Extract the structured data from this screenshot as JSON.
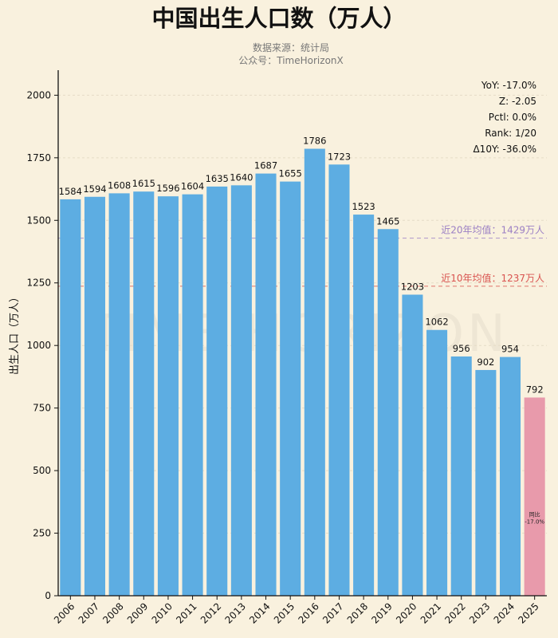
{
  "chart_data": {
    "type": "bar",
    "title": "中国出生人口数（万人）",
    "subtitle_lines": [
      "数据来源：统计局",
      "公众号：TimeHorizonX"
    ],
    "ylabel": "出生人口（万人）",
    "xlabel": "",
    "ylim": [
      0,
      2100
    ],
    "yticks": [
      0,
      250,
      500,
      750,
      1000,
      1250,
      1500,
      1750,
      2000
    ],
    "grid": true,
    "categories": [
      "2006",
      "2007",
      "2008",
      "2009",
      "2010",
      "2011",
      "2012",
      "2013",
      "2014",
      "2015",
      "2016",
      "2017",
      "2018",
      "2019",
      "2020",
      "2021",
      "2022",
      "2023",
      "2024",
      "2025"
    ],
    "values": [
      1584,
      1594,
      1608,
      1615,
      1596,
      1604,
      1635,
      1640,
      1687,
      1655,
      1786,
      1723,
      1523,
      1465,
      1203,
      1062,
      956,
      902,
      954,
      792
    ],
    "highlight_index": 19,
    "highlight_annotation": [
      "同比",
      "-17.0%"
    ],
    "reference_lines": [
      {
        "label": "近20年均值：1429万人",
        "value": 1429,
        "color": "#9b7fc4"
      },
      {
        "label": "近10年均值：1237万人",
        "value": 1237,
        "color": "#d9534f"
      }
    ],
    "stats": [
      {
        "key": "YoY",
        "value": "-17.0%"
      },
      {
        "key": "Z",
        "value": "-2.05"
      },
      {
        "key": "Pctl",
        "value": "0.0%"
      },
      {
        "key": "Rank",
        "value": "1/20"
      },
      {
        "key": "Δ10Y",
        "value": "-36.0%"
      }
    ],
    "watermark": "TIME HORIZON",
    "colors": {
      "bar": "#5dade2",
      "highlight": "#e89aab",
      "background": "#f9f1de"
    }
  }
}
